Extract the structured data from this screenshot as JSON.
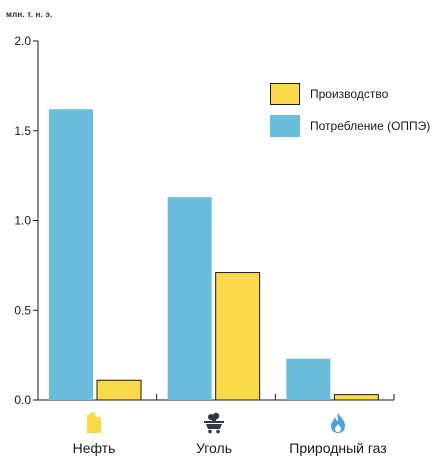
{
  "chart_data": {
    "type": "bar",
    "unit_label": "млн. т. н. э.",
    "categories": [
      "Нефть",
      "Уголь",
      "Природный газ"
    ],
    "category_icons": [
      "oil-canister-icon",
      "coal-cart-icon",
      "gas-flame-icon"
    ],
    "series": [
      {
        "name": "Потребление (ОППЭ)",
        "color": "#6bbddc",
        "values": [
          1.62,
          1.13,
          0.23
        ]
      },
      {
        "name": "Производство",
        "color": "#fad94a",
        "values": [
          0.11,
          0.71,
          0.03
        ]
      }
    ],
    "ylim": [
      0,
      2.0
    ],
    "yticks": [
      "0.0",
      "0.5",
      "1.0",
      "1.5",
      "2.0"
    ],
    "grid": false,
    "legend_position": "top-right",
    "legend_order": [
      "Производство",
      "Потребление (ОППЭ)"
    ]
  }
}
